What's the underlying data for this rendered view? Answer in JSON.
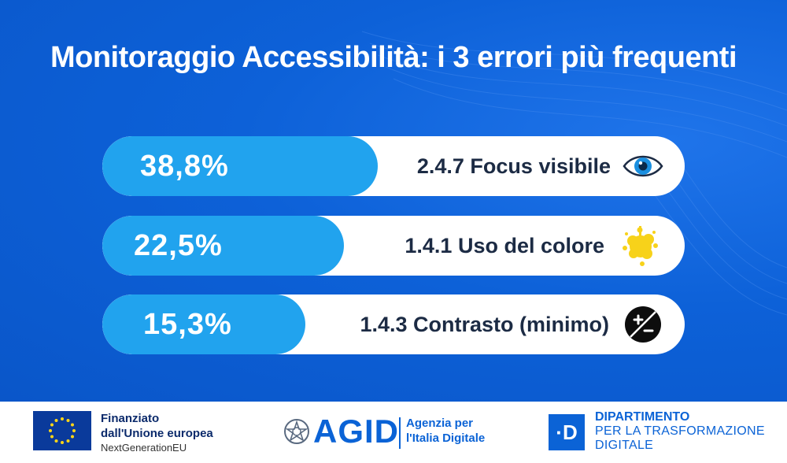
{
  "title": "Monitoraggio Accessibilità:  i 3 errori più frequenti",
  "rows": [
    {
      "percent": "38,8%",
      "value": 38.8,
      "label": "2.4.7 Focus visibile",
      "icon": "eye-icon"
    },
    {
      "percent": "22,5%",
      "value": 22.5,
      "label": "1.4.1 Uso del colore",
      "icon": "paint-splash-icon"
    },
    {
      "percent": "15,3%",
      "value": 15.3,
      "label": "1.4.3 Contrasto (minimo)",
      "icon": "contrast-icon"
    }
  ],
  "colors": {
    "background": "#0d61d8",
    "bar": "#21a3ee",
    "pill": "#ffffff",
    "label_text": "#1c2b44",
    "splash": "#f7d21a"
  },
  "footer": {
    "eu": {
      "line1": "Finanziato",
      "line2": "dall'Unione europea",
      "line3": "NextGenerationEU"
    },
    "agid": {
      "logo": "AGID",
      "line1": "Agenzia per",
      "line2": "l'Italia Digitale"
    },
    "dipartimento": {
      "logo": "·D",
      "line1": "DIPARTIMENTO",
      "line2": "PER LA TRASFORMAZIONE",
      "line3": "DIGITALE"
    }
  }
}
